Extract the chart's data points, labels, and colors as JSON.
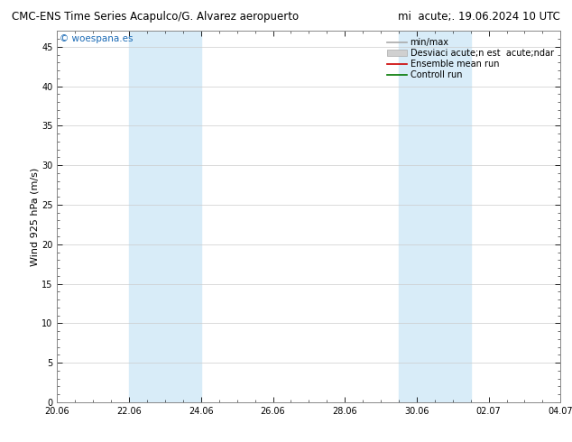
{
  "title_left": "CMC-ENS Time Series Acapulco/G. Alvarez aeropuerto",
  "title_right": "mi  acute;. 19.06.2024 10 UTC",
  "ylabel": "Wind 925 hPa (m/s)",
  "watermark": "© woespana.es",
  "ylim": [
    0,
    47
  ],
  "yticks": [
    0,
    5,
    10,
    15,
    20,
    25,
    30,
    35,
    40,
    45
  ],
  "xtick_labels": [
    "20.06",
    "22.06",
    "24.06",
    "26.06",
    "28.06",
    "30.06",
    "02.07",
    "04.07"
  ],
  "xtick_positions": [
    0,
    2,
    4,
    6,
    8,
    10,
    12,
    14
  ],
  "shade_bands": [
    {
      "x_start": 2,
      "x_end": 4
    },
    {
      "x_start": 9.5,
      "x_end": 11.5
    }
  ],
  "shade_color": "#d8ecf8",
  "bg_color": "#ffffff",
  "plot_bg_color": "#ffffff",
  "title_fontsize": 8.5,
  "tick_fontsize": 7,
  "ylabel_fontsize": 8,
  "watermark_color": "#1a6ab5",
  "legend_fontsize": 7,
  "border_color": "#888888"
}
